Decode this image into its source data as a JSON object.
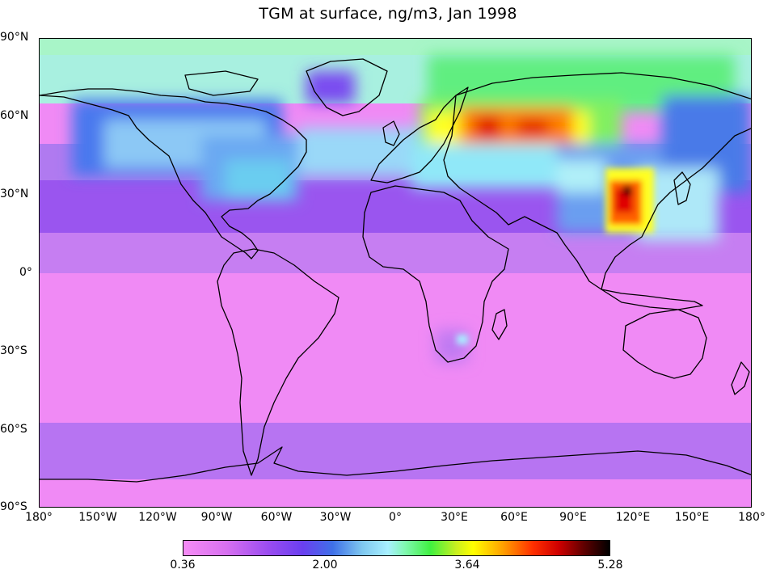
{
  "title": "TGM at surface,  ng/m3, Jan 1998",
  "lat_labels": [
    "90°N",
    "60°N",
    "30°N",
    "0°",
    "30°S",
    "60°S",
    "90°S"
  ],
  "lon_labels": [
    "180°",
    "150°W",
    "120°W",
    "90°W",
    "60°W",
    "30°W",
    "0°",
    "30°E",
    "60°E",
    "90°E",
    "120°E",
    "150°E",
    "180°"
  ],
  "colorbar": {
    "min": "0.36",
    "mid1": "2.00",
    "mid2": "3.64",
    "max": "5.28"
  },
  "colors": {
    "ocean_low": "#f58cf5",
    "purple": "#9a4cf0",
    "blue": "#3f70e8",
    "cyan": "#a8f0ff",
    "green": "#40f040",
    "yellow": "#ffff00",
    "red": "#e00000",
    "black": "#000000"
  }
}
